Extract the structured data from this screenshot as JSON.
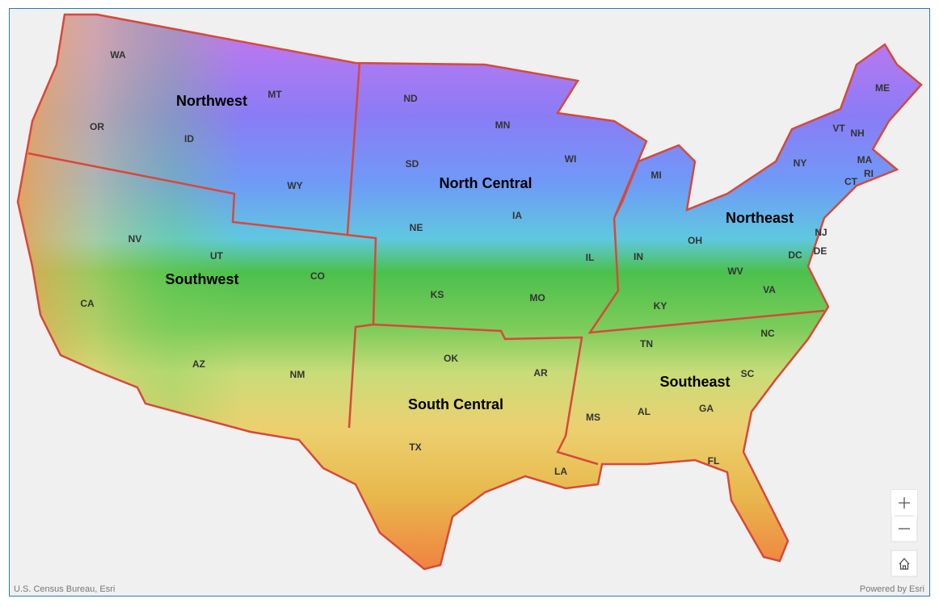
{
  "map": {
    "regions": [
      "Northwest",
      "North Central",
      "Northeast",
      "Southwest",
      "South Central",
      "Southeast"
    ],
    "states": [
      "WA",
      "MT",
      "OR",
      "ID",
      "ND",
      "MN",
      "WI",
      "MI",
      "SD",
      "WY",
      "IA",
      "NE",
      "NV",
      "UT",
      "CO",
      "KS",
      "MO",
      "IL",
      "IN",
      "OH",
      "WV",
      "VA",
      "KY",
      "ME",
      "VT",
      "NH",
      "NY",
      "MA",
      "RI",
      "CT",
      "NJ",
      "DE",
      "DC",
      "NC",
      "TN",
      "SC",
      "AR",
      "OK",
      "AZ",
      "NM",
      "CA",
      "GA",
      "AL",
      "MS",
      "TX",
      "LA",
      "FL"
    ]
  },
  "attribution": {
    "left": "U.S. Census Bureau, Esri",
    "right": "Powered by Esri"
  }
}
